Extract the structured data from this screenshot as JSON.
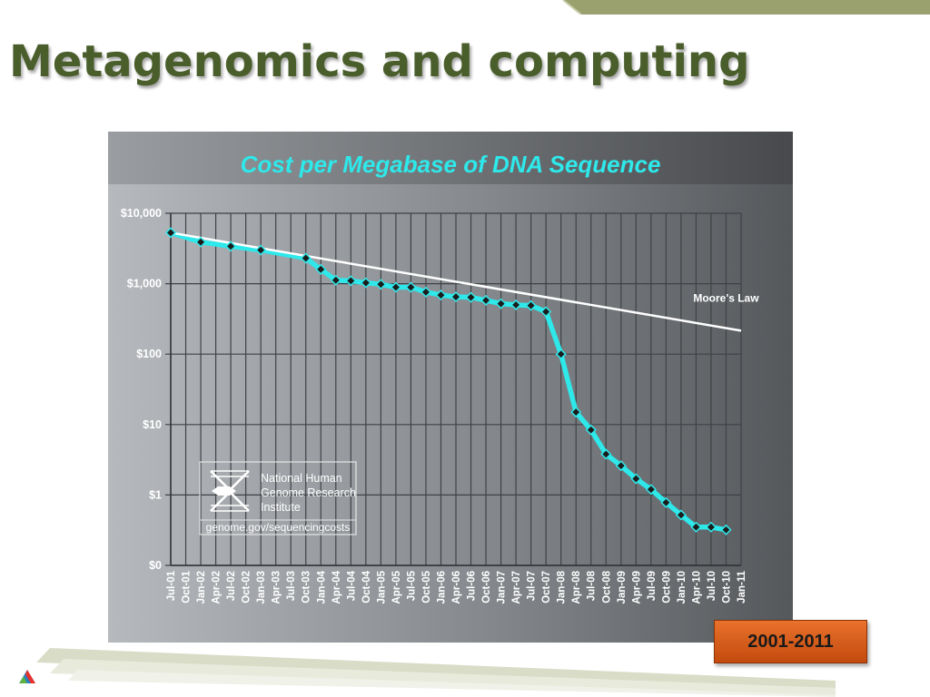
{
  "slide": {
    "title": "Metagenomics and computing",
    "range_badge": "2001-2011",
    "accent_color": "#9aa16f",
    "title_color": "#4a5e2c",
    "badge_color": "#d85d1c"
  },
  "logo": {
    "line1": "National Human",
    "line2": "Genome Research",
    "line3": "Institute",
    "url": "genome.gov/sequencingcosts"
  },
  "chart_data": {
    "type": "line",
    "title": "Cost per Megabase of DNA Sequence",
    "y_scale": "log",
    "y_ticks": [
      {
        "label": "$10,000",
        "value": 10000
      },
      {
        "label": "$1,000",
        "value": 1000
      },
      {
        "label": "$100",
        "value": 100
      },
      {
        "label": "$10",
        "value": 10
      },
      {
        "label": "$1",
        "value": 1
      },
      {
        "label": "$0",
        "value": 0.1
      }
    ],
    "ylim": [
      0.1,
      10000
    ],
    "categories": [
      "Jul-01",
      "Oct-01",
      "Jan-02",
      "Apr-02",
      "Jul-02",
      "Oct-02",
      "Jan-03",
      "Apr-03",
      "Jul-03",
      "Oct-03",
      "Jan-04",
      "Apr-04",
      "Jul-04",
      "Oct-04",
      "Jan-05",
      "Apr-05",
      "Jul-05",
      "Oct-05",
      "Jan-06",
      "Apr-06",
      "Jul-06",
      "Oct-06",
      "Jan-07",
      "Apr-07",
      "Jul-07",
      "Oct-07",
      "Jan-08",
      "Apr-08",
      "Jul-08",
      "Oct-08",
      "Jan-09",
      "Apr-09",
      "Jul-09",
      "Oct-09",
      "Jan-10",
      "Apr-10",
      "Jul-10",
      "Oct-10",
      "Jan-11"
    ],
    "grid": true,
    "series": [
      {
        "color": "#2ee8ea",
        "points": [
          {
            "x": "Jul-01",
            "y": 5300
          },
          {
            "x": "Jan-02",
            "y": 3900
          },
          {
            "x": "Jul-02",
            "y": 3400
          },
          {
            "x": "Jan-03",
            "y": 3000
          },
          {
            "x": "Oct-03",
            "y": 2300
          },
          {
            "x": "Jan-04",
            "y": 1600
          },
          {
            "x": "Apr-04",
            "y": 1120
          },
          {
            "x": "Jul-04",
            "y": 1100
          },
          {
            "x": "Oct-04",
            "y": 1030
          },
          {
            "x": "Jan-05",
            "y": 980
          },
          {
            "x": "Apr-05",
            "y": 890
          },
          {
            "x": "Jul-05",
            "y": 890
          },
          {
            "x": "Oct-05",
            "y": 760
          },
          {
            "x": "Jan-06",
            "y": 690
          },
          {
            "x": "Apr-06",
            "y": 650
          },
          {
            "x": "Jul-06",
            "y": 640
          },
          {
            "x": "Oct-06",
            "y": 580
          },
          {
            "x": "Jan-07",
            "y": 520
          },
          {
            "x": "Apr-07",
            "y": 500
          },
          {
            "x": "Jul-07",
            "y": 490
          },
          {
            "x": "Oct-07",
            "y": 400
          },
          {
            "x": "Jan-08",
            "y": 100
          },
          {
            "x": "Apr-08",
            "y": 15
          },
          {
            "x": "Jul-08",
            "y": 8.4
          },
          {
            "x": "Oct-08",
            "y": 3.8
          },
          {
            "x": "Jan-09",
            "y": 2.6
          },
          {
            "x": "Apr-09",
            "y": 1.7
          },
          {
            "x": "Jul-09",
            "y": 1.2
          },
          {
            "x": "Oct-09",
            "y": 0.78
          },
          {
            "x": "Jan-10",
            "y": 0.52
          },
          {
            "x": "Apr-10",
            "y": 0.35
          },
          {
            "x": "Jul-10",
            "y": 0.35
          },
          {
            "x": "Oct-10",
            "y": 0.32
          }
        ]
      },
      {
        "name": "Moore's Law",
        "color": "#ffffff",
        "points": [
          {
            "x": "Jul-01",
            "y": 5300
          },
          {
            "x": "Jan-11",
            "y": 215
          }
        ]
      }
    ],
    "annotations": [
      {
        "text": "Moore's Law",
        "at_category": "Oct-10",
        "at_value": 550
      }
    ]
  }
}
